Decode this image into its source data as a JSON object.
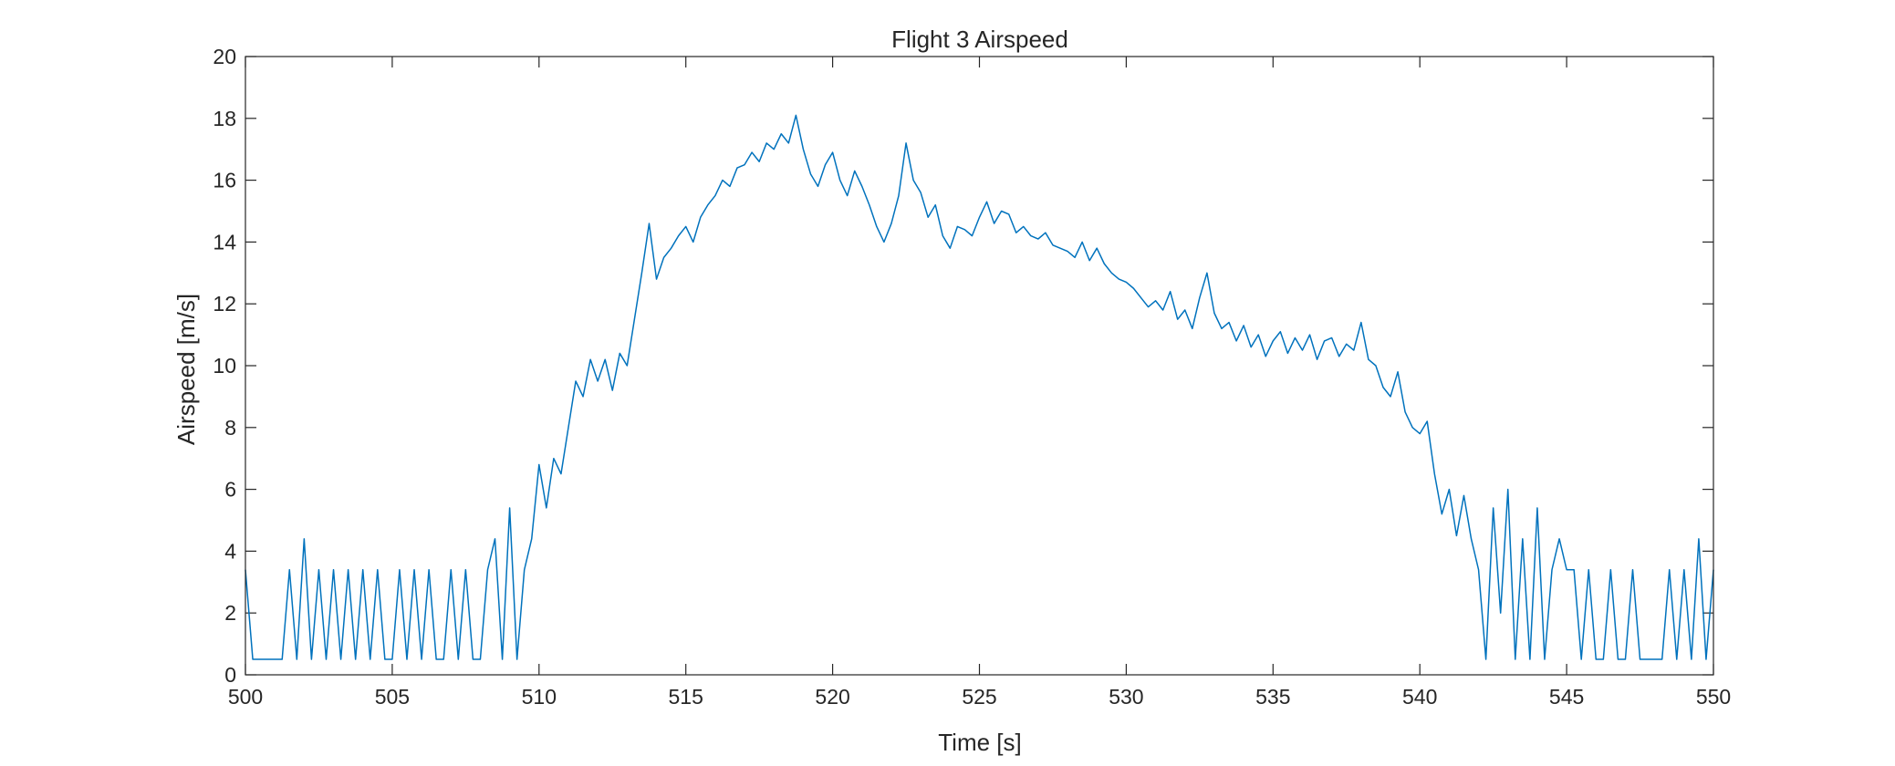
{
  "chart_data": {
    "type": "line",
    "title": "Flight 3 Airspeed",
    "x_label": "Time [s]",
    "y_label": "Airspeed [m/s]",
    "color": "#0072bd",
    "x": [
      500,
      500.25,
      500.5,
      500.75,
      501,
      501.25,
      501.5,
      501.75,
      502,
      502.25,
      502.5,
      502.75,
      503,
      503.25,
      503.5,
      503.75,
      504,
      504.25,
      504.5,
      504.75,
      505,
      505.25,
      505.5,
      505.75,
      506,
      506.25,
      506.5,
      506.75,
      507,
      507.25,
      507.5,
      507.75,
      508,
      508.25,
      508.5,
      508.75,
      509,
      509.25,
      509.5,
      509.75,
      510,
      510.25,
      510.5,
      510.75,
      511,
      511.25,
      511.5,
      511.75,
      512,
      512.25,
      512.5,
      512.75,
      513,
      513.25,
      513.5,
      513.75,
      514,
      514.25,
      514.5,
      514.75,
      515,
      515.25,
      515.5,
      515.75,
      516,
      516.25,
      516.5,
      516.75,
      517,
      517.25,
      517.5,
      517.75,
      518,
      518.25,
      518.5,
      518.75,
      519,
      519.25,
      519.5,
      519.75,
      520,
      520.25,
      520.5,
      520.75,
      521,
      521.25,
      521.5,
      521.75,
      522,
      522.25,
      522.5,
      522.75,
      523,
      523.25,
      523.5,
      523.75,
      524,
      524.25,
      524.5,
      524.75,
      525,
      525.25,
      525.5,
      525.75,
      526,
      526.25,
      526.5,
      526.75,
      527,
      527.25,
      527.5,
      527.75,
      528,
      528.25,
      528.5,
      528.75,
      529,
      529.25,
      529.5,
      529.75,
      530,
      530.25,
      530.5,
      530.75,
      531,
      531.25,
      531.5,
      531.75,
      532,
      532.25,
      532.5,
      532.75,
      533,
      533.25,
      533.5,
      533.75,
      534,
      534.25,
      534.5,
      534.75,
      535,
      535.25,
      535.5,
      535.75,
      536,
      536.25,
      536.5,
      536.75,
      537,
      537.25,
      537.5,
      537.75,
      538,
      538.25,
      538.5,
      538.75,
      539,
      539.25,
      539.5,
      539.75,
      540,
      540.25,
      540.5,
      540.75,
      541,
      541.25,
      541.5,
      541.75,
      542,
      542.25,
      542.5,
      542.75,
      543,
      543.25,
      543.5,
      543.75,
      544,
      544.25,
      544.5,
      544.75,
      545,
      545.25,
      545.5,
      545.75,
      546,
      546.25,
      546.5,
      546.75,
      547,
      547.25,
      547.5,
      547.75,
      548,
      548.25,
      548.5,
      548.75,
      549,
      549.25,
      549.5,
      549.75,
      550
    ],
    "values": [
      3.4,
      0.5,
      0.5,
      0.5,
      0.5,
      0.5,
      3.4,
      0.5,
      4.4,
      0.5,
      3.4,
      0.5,
      3.4,
      0.5,
      3.4,
      0.5,
      3.4,
      0.5,
      3.4,
      0.5,
      0.5,
      3.4,
      0.5,
      3.4,
      0.5,
      3.4,
      0.5,
      0.5,
      3.4,
      0.5,
      3.4,
      0.5,
      0.5,
      3.4,
      4.4,
      0.5,
      5.4,
      0.5,
      3.4,
      4.4,
      6.8,
      5.4,
      7.0,
      6.5,
      8.0,
      9.5,
      9.0,
      10.2,
      9.5,
      10.2,
      9.2,
      10.4,
      10.0,
      11.5,
      13.0,
      14.6,
      12.8,
      13.5,
      13.8,
      14.2,
      14.5,
      14.0,
      14.8,
      15.2,
      15.5,
      16.0,
      15.8,
      16.4,
      16.5,
      16.9,
      16.6,
      17.2,
      17.0,
      17.5,
      17.2,
      18.1,
      17.0,
      16.2,
      15.8,
      16.5,
      16.9,
      16.0,
      15.5,
      16.3,
      15.8,
      15.2,
      14.5,
      14.0,
      14.6,
      15.5,
      17.2,
      16.0,
      15.6,
      14.8,
      15.2,
      14.2,
      13.8,
      14.5,
      14.4,
      14.2,
      14.8,
      15.3,
      14.6,
      15.0,
      14.9,
      14.3,
      14.5,
      14.2,
      14.1,
      14.3,
      13.9,
      13.8,
      13.7,
      13.5,
      14.0,
      13.4,
      13.8,
      13.3,
      13.0,
      12.8,
      12.7,
      12.5,
      12.2,
      11.9,
      12.1,
      11.8,
      12.4,
      11.5,
      11.8,
      11.2,
      12.2,
      13.0,
      11.7,
      11.2,
      11.4,
      10.8,
      11.3,
      10.6,
      11.0,
      10.3,
      10.8,
      11.1,
      10.4,
      10.9,
      10.5,
      11.0,
      10.2,
      10.8,
      10.9,
      10.3,
      10.7,
      10.5,
      11.4,
      10.2,
      10.0,
      9.3,
      9.0,
      9.8,
      8.5,
      8.0,
      7.8,
      8.2,
      6.5,
      5.2,
      6.0,
      4.5,
      5.8,
      4.4,
      3.4,
      0.5,
      5.4,
      2.0,
      6.0,
      0.5,
      4.4,
      0.5,
      5.4,
      0.5,
      3.4,
      4.4,
      3.4,
      3.4,
      0.5,
      3.4,
      0.5,
      0.5,
      3.4,
      0.5,
      0.5,
      3.4,
      0.5,
      0.5,
      0.5,
      0.5,
      3.4,
      0.5,
      3.4,
      0.5,
      4.4,
      0.5,
      3.4
    ],
    "xlim": [
      500,
      550
    ],
    "xticks": [
      500,
      505,
      510,
      515,
      520,
      525,
      530,
      535,
      540,
      545,
      550
    ],
    "ylim": [
      0,
      20
    ],
    "yticks": [
      0,
      2,
      4,
      6,
      8,
      10,
      12,
      14,
      16,
      18,
      20
    ]
  }
}
